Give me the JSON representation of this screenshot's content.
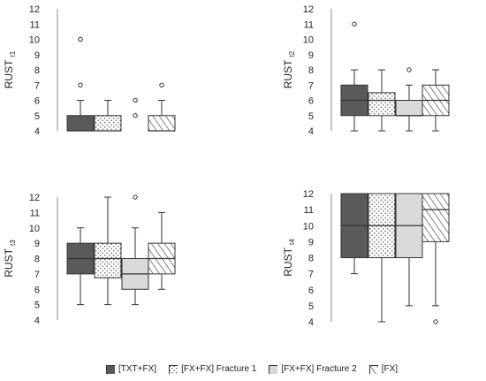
{
  "chart_data": [
    {
      "type": "boxplot",
      "ylabel": "RUST",
      "ylabel_sub": "t1",
      "ylim": [
        4,
        12
      ],
      "yticks": [
        4,
        5,
        6,
        7,
        8,
        9,
        10,
        11,
        12
      ],
      "boxes": [
        {
          "series": "[TXT+FX]",
          "whisker_low": 4,
          "q1": 4,
          "median": 4,
          "q3": 5,
          "whisker_high": 6,
          "outliers": [
            7,
            10,
            10
          ]
        },
        {
          "series": "[FX+FX] Fracture 1",
          "whisker_low": 4,
          "q1": 4,
          "median": 4,
          "q3": 5,
          "whisker_high": 6,
          "outliers": []
        },
        {
          "series": "[FX+FX] Fracture 2",
          "whisker_low": 4,
          "q1": 4,
          "median": 4,
          "q3": 4,
          "whisker_high": 4,
          "outliers": [
            5,
            6
          ]
        },
        {
          "series": "[FX]",
          "whisker_low": 4,
          "q1": 4,
          "median": 4,
          "q3": 5,
          "whisker_high": 6,
          "outliers": [
            7
          ]
        }
      ]
    },
    {
      "type": "boxplot",
      "ylabel": "RUST",
      "ylabel_sub": "t2",
      "ylim": [
        4,
        12
      ],
      "yticks": [
        4,
        5,
        6,
        7,
        8,
        9,
        10,
        11,
        12
      ],
      "boxes": [
        {
          "series": "[TXT+FX]",
          "whisker_low": 4,
          "q1": 5,
          "median": 6,
          "q3": 7,
          "whisker_high": 8,
          "outliers": [
            11
          ]
        },
        {
          "series": "[FX+FX] Fracture 1",
          "whisker_low": 4,
          "q1": 5,
          "median": 6,
          "q3": 6.5,
          "whisker_high": 8,
          "outliers": []
        },
        {
          "series": "[FX+FX] Fracture 2",
          "whisker_low": 4,
          "q1": 5,
          "median": 5,
          "q3": 6,
          "whisker_high": 7,
          "outliers": [
            8
          ]
        },
        {
          "series": "[FX]",
          "whisker_low": 4,
          "q1": 5,
          "median": 6,
          "q3": 7,
          "whisker_high": 8,
          "outliers": []
        }
      ]
    },
    {
      "type": "boxplot",
      "ylabel": "RUST",
      "ylabel_sub": "t3",
      "ylim": [
        4,
        12
      ],
      "yticks": [
        4,
        5,
        6,
        7,
        8,
        9,
        10,
        11,
        12
      ],
      "boxes": [
        {
          "series": "[TXT+FX]",
          "whisker_low": 5,
          "q1": 7,
          "median": 8,
          "q3": 9,
          "whisker_high": 10,
          "outliers": []
        },
        {
          "series": "[FX+FX] Fracture 1",
          "whisker_low": 5,
          "q1": 6.75,
          "median": 8,
          "q3": 9,
          "whisker_high": 12,
          "outliers": []
        },
        {
          "series": "[FX+FX] Fracture 2",
          "whisker_low": 5,
          "q1": 6,
          "median": 7,
          "q3": 8,
          "whisker_high": 10,
          "outliers": [
            12
          ]
        },
        {
          "series": "[FX]",
          "whisker_low": 6,
          "q1": 7,
          "median": 8,
          "q3": 9,
          "whisker_high": 11,
          "outliers": []
        }
      ]
    },
    {
      "type": "boxplot",
      "ylabel": "RUST",
      "ylabel_sub": "t4",
      "ylim": [
        4,
        12
      ],
      "yticks": [
        4,
        5,
        6,
        7,
        8,
        9,
        10,
        11,
        12
      ],
      "boxes": [
        {
          "series": "[TXT+FX]",
          "whisker_low": 7,
          "q1": 8,
          "median": 10,
          "q3": 12,
          "whisker_high": 12,
          "outliers": []
        },
        {
          "series": "[FX+FX] Fracture 1",
          "whisker_low": 4,
          "q1": 8,
          "median": 10,
          "q3": 12,
          "whisker_high": 12,
          "outliers": []
        },
        {
          "series": "[FX+FX] Fracture 2",
          "whisker_low": 5,
          "q1": 8,
          "median": 10,
          "q3": 12,
          "whisker_high": 12,
          "outliers": []
        },
        {
          "series": "[FX]",
          "whisker_low": 5,
          "q1": 9,
          "median": 11,
          "q3": 12,
          "whisker_high": 12,
          "outliers": [
            4
          ]
        }
      ]
    }
  ],
  "legend": {
    "position": "bottom",
    "items": [
      {
        "label": "[TXT+FX]",
        "pattern": "solid-dark",
        "color": "#5a5a5a"
      },
      {
        "label": "[FX+FX] Fracture 1",
        "pattern": "dotted",
        "color": "#ffffff"
      },
      {
        "label": "[FX+FX] Fracture 2",
        "pattern": "solid-light",
        "color": "#d9d9d9"
      },
      {
        "label": "[FX]",
        "pattern": "diagonal-hatch",
        "color": "#ffffff"
      }
    ]
  },
  "colors": {
    "dark_fill": "#5a5a5a",
    "light_fill": "#d9d9d9",
    "stroke": "#333333",
    "axis": "#888888"
  }
}
